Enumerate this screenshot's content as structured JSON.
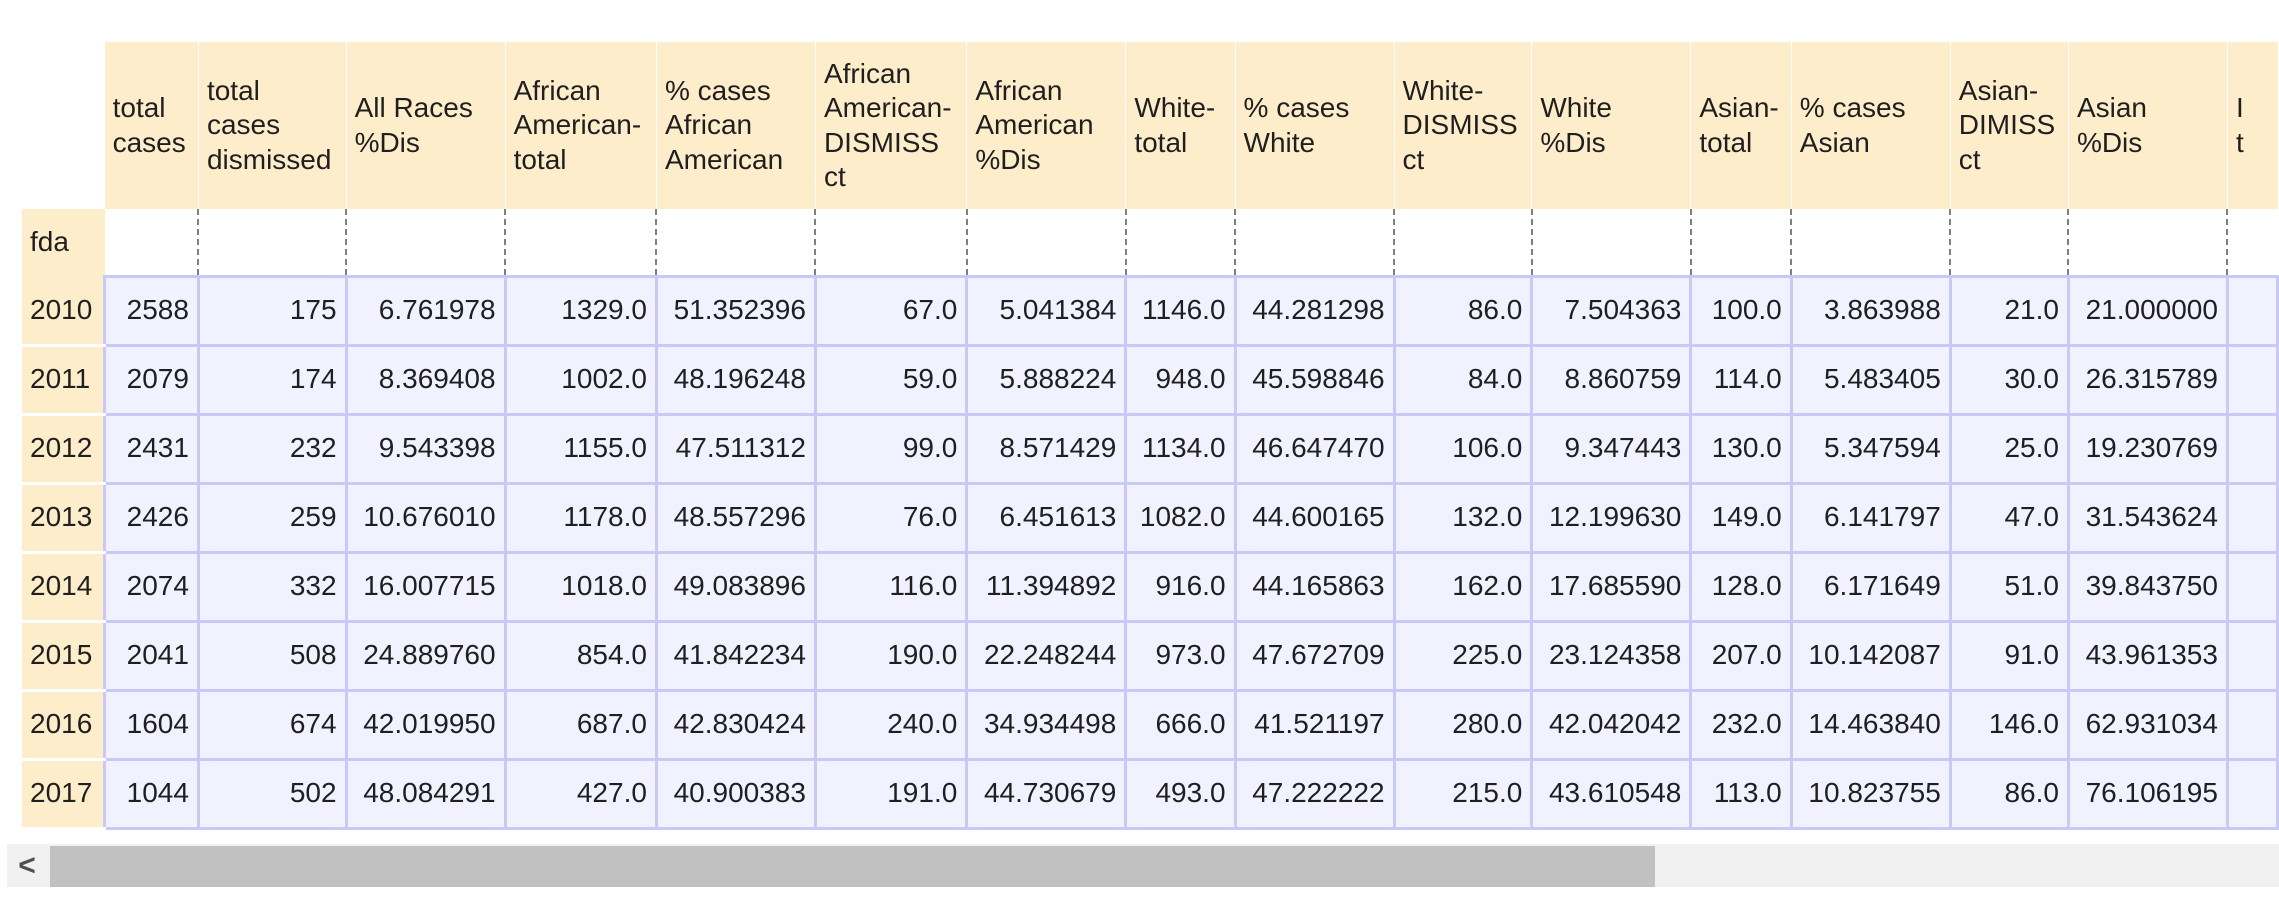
{
  "table": {
    "index_name": "fda",
    "columns": [
      [
        "total",
        "cases"
      ],
      [
        "total",
        "cases",
        "dismissed"
      ],
      [
        "All Races",
        "%Dis"
      ],
      [
        "African",
        "American-",
        "total"
      ],
      [
        "% cases",
        "African",
        "American"
      ],
      [
        "African",
        "American-",
        "DISMISS",
        "ct"
      ],
      [
        "African",
        "American",
        "%Dis"
      ],
      [
        "White-",
        "total"
      ],
      [
        "% cases",
        "White"
      ],
      [
        "White-",
        "DISMISS",
        "ct"
      ],
      [
        "White",
        "%Dis"
      ],
      [
        "Asian-",
        "total"
      ],
      [
        "% cases",
        "Asian"
      ],
      [
        "Asian-",
        "DIMISS",
        "ct"
      ],
      [
        "Asian",
        "%Dis"
      ],
      [
        "I",
        "t"
      ]
    ],
    "rows": [
      {
        "index": "2010",
        "cells": [
          "2588",
          "175",
          "6.761978",
          "1329.0",
          "51.352396",
          "67.0",
          "5.041384",
          "1146.0",
          "44.281298",
          "86.0",
          "7.504363",
          "100.0",
          "3.863988",
          "21.0",
          "21.000000",
          ""
        ]
      },
      {
        "index": "2011",
        "cells": [
          "2079",
          "174",
          "8.369408",
          "1002.0",
          "48.196248",
          "59.0",
          "5.888224",
          "948.0",
          "45.598846",
          "84.0",
          "8.860759",
          "114.0",
          "5.483405",
          "30.0",
          "26.315789",
          ""
        ]
      },
      {
        "index": "2012",
        "cells": [
          "2431",
          "232",
          "9.543398",
          "1155.0",
          "47.511312",
          "99.0",
          "8.571429",
          "1134.0",
          "46.647470",
          "106.0",
          "9.347443",
          "130.0",
          "5.347594",
          "25.0",
          "19.230769",
          ""
        ]
      },
      {
        "index": "2013",
        "cells": [
          "2426",
          "259",
          "10.676010",
          "1178.0",
          "48.557296",
          "76.0",
          "6.451613",
          "1082.0",
          "44.600165",
          "132.0",
          "12.199630",
          "149.0",
          "6.141797",
          "47.0",
          "31.543624",
          ""
        ]
      },
      {
        "index": "2014",
        "cells": [
          "2074",
          "332",
          "16.007715",
          "1018.0",
          "49.083896",
          "116.0",
          "11.394892",
          "916.0",
          "44.165863",
          "162.0",
          "17.685590",
          "128.0",
          "6.171649",
          "51.0",
          "39.843750",
          ""
        ]
      },
      {
        "index": "2015",
        "cells": [
          "2041",
          "508",
          "24.889760",
          "854.0",
          "41.842234",
          "190.0",
          "22.248244",
          "973.0",
          "47.672709",
          "225.0",
          "23.124358",
          "207.0",
          "10.142087",
          "91.0",
          "43.961353",
          ""
        ]
      },
      {
        "index": "2016",
        "cells": [
          "1604",
          "674",
          "42.019950",
          "687.0",
          "42.830424",
          "240.0",
          "34.934498",
          "666.0",
          "41.521197",
          "280.0",
          "42.042042",
          "232.0",
          "14.463840",
          "146.0",
          "62.931034",
          ""
        ]
      },
      {
        "index": "2017",
        "cells": [
          "1044",
          "502",
          "48.084291",
          "427.0",
          "40.900383",
          "191.0",
          "44.730679",
          "493.0",
          "47.222222",
          "215.0",
          "43.610548",
          "113.0",
          "10.823755",
          "86.0",
          "76.106195",
          ""
        ]
      }
    ]
  },
  "scrollbar": {
    "left_arrow_icon": "chevron-left-icon",
    "left_arrow_glyph": "<",
    "thumb_fraction": 0.72
  },
  "colors": {
    "header_bg": "#feedca",
    "cell_bg": "#f1f1ff",
    "cell_border": "#c9c9f5"
  }
}
